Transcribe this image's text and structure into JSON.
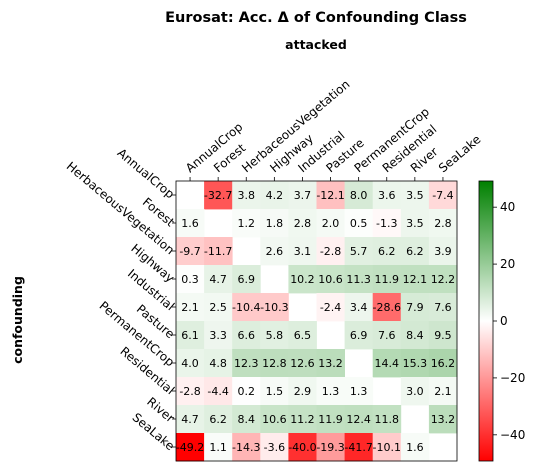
{
  "chart_data": {
    "type": "heatmap",
    "title": "Eurosat: Acc. Δ of Confounding Class",
    "xlabel": "attacked",
    "ylabel": "confounding",
    "x_categories": [
      "AnnualCrop",
      "Forest",
      "HerbaceousVegetation",
      "Highway",
      "Industrial",
      "Pasture",
      "PermanentCrop",
      "Residential",
      "River",
      "SeaLake"
    ],
    "y_categories": [
      "AnnualCrop",
      "Forest",
      "HerbaceousVegetation",
      "Highway",
      "Industrial",
      "Pasture",
      "PermanentCrop",
      "Residential",
      "River",
      "SeaLake"
    ],
    "values": [
      [
        null,
        -32.7,
        3.8,
        4.2,
        3.7,
        -12.1,
        8.0,
        3.6,
        3.5,
        -7.4
      ],
      [
        1.6,
        null,
        1.2,
        1.8,
        2.8,
        2.0,
        0.5,
        -1.3,
        3.5,
        2.8
      ],
      [
        -9.7,
        -11.7,
        null,
        2.6,
        3.1,
        -2.8,
        5.7,
        6.2,
        6.2,
        3.9
      ],
      [
        0.3,
        4.7,
        6.9,
        null,
        10.2,
        10.6,
        11.3,
        11.9,
        12.1,
        12.2
      ],
      [
        2.1,
        2.5,
        -10.4,
        -10.3,
        null,
        -2.4,
        3.4,
        -28.6,
        7.9,
        7.6
      ],
      [
        6.1,
        3.3,
        6.6,
        5.8,
        6.5,
        null,
        6.9,
        7.6,
        8.4,
        9.5
      ],
      [
        4.0,
        4.8,
        12.3,
        12.8,
        12.6,
        13.2,
        null,
        14.4,
        15.3,
        16.2
      ],
      [
        -2.8,
        -4.4,
        0.2,
        1.5,
        2.9,
        1.3,
        1.3,
        null,
        3.0,
        2.1
      ],
      [
        4.7,
        6.2,
        8.4,
        10.6,
        11.2,
        11.9,
        12.4,
        11.8,
        null,
        13.2
      ],
      [
        -49.2,
        1.1,
        -14.3,
        -3.6,
        -40.0,
        -19.3,
        -41.7,
        -10.1,
        1.6,
        null
      ]
    ],
    "value_labels": [
      [
        "",
        "-32.7",
        "3.8",
        "4.2",
        "3.7",
        "-12.1",
        "8.0",
        "3.6",
        "3.5",
        "-7.4"
      ],
      [
        "1.6",
        "",
        "1.2",
        "1.8",
        "2.8",
        "2.0",
        "0.5",
        "-1.3",
        "3.5",
        "2.8"
      ],
      [
        "-9.7",
        "-11.7",
        "",
        "2.6",
        "3.1",
        "-2.8",
        "5.7",
        "6.2",
        "6.2",
        "3.9"
      ],
      [
        "0.3",
        "4.7",
        "6.9",
        "",
        "10.2",
        "10.6",
        "11.3",
        "11.9",
        "12.1",
        "12.2"
      ],
      [
        "2.1",
        "2.5",
        "-10.4",
        "-10.3",
        "",
        "-2.4",
        "3.4",
        "-28.6",
        "7.9",
        "7.6"
      ],
      [
        "6.1",
        "3.3",
        "6.6",
        "5.8",
        "6.5",
        "",
        "6.9",
        "7.6",
        "8.4",
        "9.5"
      ],
      [
        "4.0",
        "4.8",
        "12.3",
        "12.8",
        "12.6",
        "13.2",
        "",
        "14.4",
        "15.3",
        "16.2"
      ],
      [
        "-2.8",
        "-4.4",
        "0.2",
        "1.5",
        "2.9",
        "1.3",
        "1.3",
        "",
        "3.0",
        "2.1"
      ],
      [
        "4.7",
        "6.2",
        "8.4",
        "10.6",
        "11.2",
        "11.9",
        "12.4",
        "11.8",
        "",
        "13.2"
      ],
      [
        "-49.2",
        "1.1",
        "-14.3",
        "-3.6",
        "-40.0",
        "-19.3",
        "-41.7",
        "-10.1",
        "1.6",
        ""
      ]
    ],
    "colorbar": {
      "vmin": -49.2,
      "vmax": 49.2,
      "ticks": [
        -40,
        -20,
        0,
        20,
        40
      ],
      "tick_labels": [
        "−40",
        "−20",
        "0",
        "20",
        "40"
      ],
      "colors": {
        "negative": "#ff0000",
        "zero": "#ffffff",
        "positive": "#008000"
      }
    },
    "grid": false,
    "x_tick_position": "top"
  }
}
